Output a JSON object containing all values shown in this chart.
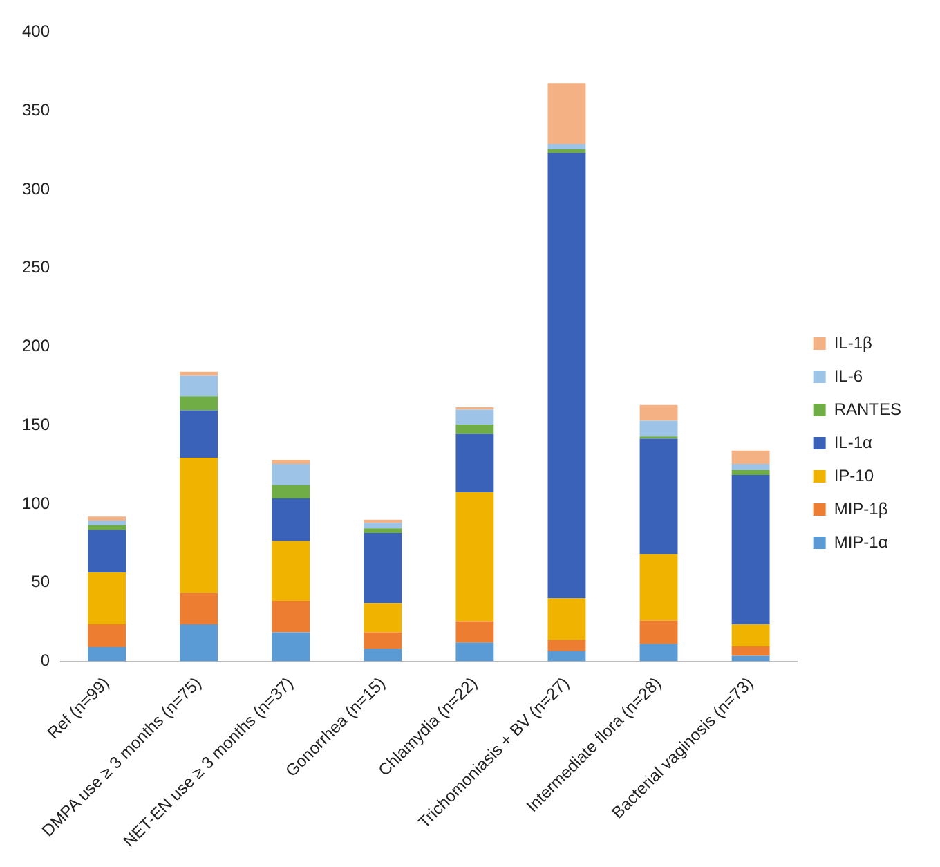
{
  "chart_data": {
    "type": "bar",
    "stacked": true,
    "categories": [
      "Ref (n=99)",
      "DMPA use ≥ 3 months (n=75)",
      "NET-EN use ≥ 3 months (n=37)",
      "Gonorrhea (n=15)",
      "Chlamydia (n=22)",
      "Trichomoniasis + BV (n=27)",
      "Intermediate flora (n=28)",
      "Bacterial vaginosis (n=73)"
    ],
    "series": [
      {
        "name": "MIP-1α",
        "color": "#5b9bd5",
        "values": [
          9,
          23.5,
          18.5,
          8,
          12,
          6.5,
          11,
          3.5
        ]
      },
      {
        "name": "MIP-1β",
        "color": "#ed7d31",
        "values": [
          14.5,
          20,
          20,
          10.5,
          13.5,
          7,
          15,
          6
        ]
      },
      {
        "name": "IP-10",
        "color": "#f0b400",
        "values": [
          33,
          86,
          38,
          18.5,
          82,
          26.5,
          42,
          14
        ]
      },
      {
        "name": "IL-1α",
        "color": "#3a62b8",
        "values": [
          27,
          30,
          27,
          44.5,
          37,
          283,
          73.5,
          95
        ]
      },
      {
        "name": "RANTES",
        "color": "#70ad47",
        "values": [
          3,
          9,
          8.5,
          3,
          6,
          2.5,
          1.5,
          3
        ]
      },
      {
        "name": "IL-6",
        "color": "#9dc3e6",
        "values": [
          3,
          13,
          13.5,
          3.5,
          9.5,
          3.5,
          10,
          4
        ]
      },
      {
        "name": "IL-1β",
        "color": "#f4b183",
        "values": [
          2.5,
          2.5,
          2.5,
          2,
          1.5,
          38.5,
          10,
          8.5
        ]
      }
    ],
    "ylim": [
      0,
      400
    ],
    "yticks": [
      0,
      50,
      100,
      150,
      200,
      250,
      300,
      350,
      400
    ],
    "grid": false,
    "legend": "right"
  }
}
